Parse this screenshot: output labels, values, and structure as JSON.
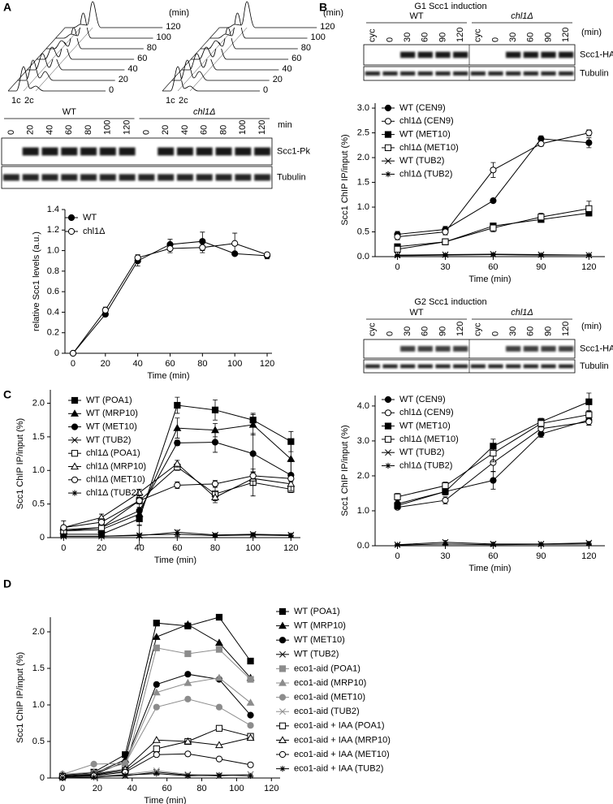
{
  "panels": [
    "A",
    "B",
    "C",
    "D"
  ],
  "flow": {
    "unit": "(min)",
    "times": [
      "120",
      "100",
      "80",
      "60",
      "40",
      "20",
      "0"
    ],
    "peaks": [
      "1c",
      "2c"
    ]
  },
  "blots": [
    {
      "groups": [
        "WT",
        "chl1Δ"
      ],
      "lanes": [
        "0",
        "20",
        "40",
        "60",
        "80",
        "100",
        "120"
      ],
      "unit": "min",
      "rows": [
        "Scc1-Pk",
        "Tubulin"
      ]
    },
    {
      "title": "G1 Scc1 induction",
      "groups": [
        "WT",
        "chl1Δ"
      ],
      "lanes": [
        "cyc",
        "0",
        "30",
        "60",
        "90",
        "120"
      ],
      "unit": "(min)",
      "rows": [
        "Scc1-HA",
        "Tubulin"
      ]
    },
    {
      "title": "G2 Scc1 induction",
      "groups": [
        "WT",
        "chl1Δ"
      ],
      "lanes": [
        "cyc",
        "0",
        "30",
        "60",
        "90",
        "120"
      ],
      "unit": "(min)",
      "rows": [
        "Scc1-HA",
        "Tubulin"
      ]
    }
  ],
  "chart_data": [
    {
      "type": "line",
      "xlabel": "Time (min)",
      "ylabel": "relative Scc1 levels (a.u.)",
      "x": [
        0,
        20,
        40,
        60,
        80,
        100,
        120
      ],
      "xlim": [
        -5,
        123
      ],
      "xticks": [
        0,
        20,
        40,
        60,
        80,
        100,
        120
      ],
      "ylim": [
        0,
        1.4
      ],
      "yticks": [
        0,
        0.2,
        0.4,
        0.6,
        0.8,
        {
          "value": 1,
          "label": "1.0"
        },
        1.2,
        1.4
      ],
      "legend": "upper left",
      "series": [
        {
          "name": "WT",
          "color": "#000000",
          "marker": "circle",
          "fill": "#000000",
          "values": [
            0,
            0.38,
            0.9,
            1.06,
            1.09,
            0.97,
            0.95
          ],
          "errors": [
            0.01,
            0.02,
            0.05,
            0.05,
            0.09,
            0.01,
            0.03
          ]
        },
        {
          "name": "chl1Δ",
          "color": "#000000",
          "marker": "circle",
          "fill": "#ffffff",
          "values": [
            0,
            0.42,
            0.93,
            1.02,
            1.03,
            1.07,
            0.96
          ],
          "errors": [
            0.01,
            0.03,
            0.03,
            0.04,
            0.05,
            0.1,
            0.02
          ]
        }
      ]
    },
    {
      "type": "line",
      "xlabel": "Time (min)",
      "ylabel": "Scc1 ChIP IP/input (%)",
      "x": [
        0,
        30,
        60,
        90,
        120
      ],
      "xlim": [
        -14,
        130
      ],
      "xticks": [
        0,
        30,
        60,
        90,
        120
      ],
      "ylim": [
        0,
        3.1
      ],
      "yticks": [
        {
          "value": 0,
          "label": "0.0"
        },
        0.5,
        {
          "value": 1,
          "label": "1.0"
        },
        1.5,
        {
          "value": 2,
          "label": "2.0"
        },
        2.5,
        {
          "value": 3,
          "label": "3.0"
        }
      ],
      "legend": "upper left",
      "series": [
        {
          "name": "WT (CEN9)",
          "color": "#000000",
          "marker": "circle",
          "fill": "#000000",
          "values": [
            0.45,
            0.55,
            1.13,
            2.38,
            2.3
          ],
          "errors": [
            0.06,
            0.06,
            0.04,
            0.06,
            0.1
          ]
        },
        {
          "name": "chl1Δ (CEN9)",
          "color": "#000000",
          "marker": "circle",
          "fill": "#ffffff",
          "values": [
            0.4,
            0.5,
            1.75,
            2.28,
            2.5
          ],
          "errors": [
            0.06,
            0.06,
            0.15,
            0.05,
            0.06
          ]
        },
        {
          "name": "WT (MET10)",
          "color": "#000000",
          "marker": "square",
          "fill": "#000000",
          "values": [
            0.2,
            0.3,
            0.62,
            0.75,
            0.88
          ],
          "errors": [
            0.05,
            0.05,
            0.04,
            0.04,
            0.05
          ]
        },
        {
          "name": "chl1Δ (MET10)",
          "color": "#000000",
          "marker": "square",
          "fill": "#ffffff",
          "values": [
            0.15,
            0.3,
            0.58,
            0.8,
            0.97
          ],
          "errors": [
            0.05,
            0.06,
            0.08,
            0.08,
            0.15
          ]
        },
        {
          "name": "WT (TUB2)",
          "color": "#000000",
          "marker": "x",
          "fill": "#000000",
          "values": [
            0.03,
            0.04,
            0.05,
            0.04,
            0.03
          ],
          "errors": [
            0.01,
            0.01,
            0.01,
            0.01,
            0.01
          ]
        },
        {
          "name": "chl1Δ (TUB2)",
          "color": "#000000",
          "marker": "star",
          "fill": "#000000",
          "values": [
            0.02,
            0.03,
            0.04,
            0.03,
            0.03
          ],
          "errors": [
            0.01,
            0.01,
            0.01,
            0.01,
            0.01
          ]
        }
      ]
    },
    {
      "type": "line",
      "xlabel": "Time (min)",
      "ylabel": "Scc1 ChIP IP/input (%)",
      "x": [
        0,
        30,
        60,
        90,
        120
      ],
      "xlim": [
        -14,
        130
      ],
      "xticks": [
        0,
        30,
        60,
        90,
        120
      ],
      "ylim": [
        0,
        4.3
      ],
      "yticks": [
        {
          "value": 0,
          "label": "0.0"
        },
        {
          "value": 1,
          "label": "1.0"
        },
        {
          "value": 2,
          "label": "2.0"
        },
        {
          "value": 3,
          "label": "3.0"
        },
        {
          "value": 4,
          "label": "4.0"
        }
      ],
      "legend": "upper left",
      "series": [
        {
          "name": "WT (CEN9)",
          "color": "#000000",
          "marker": "circle",
          "fill": "#000000",
          "values": [
            1.2,
            1.55,
            1.87,
            3.2,
            3.6
          ],
          "errors": [
            0.1,
            0.1,
            0.25,
            0.1,
            0.15
          ]
        },
        {
          "name": "chl1Δ (CEN9)",
          "color": "#000000",
          "marker": "circle",
          "fill": "#ffffff",
          "values": [
            1.1,
            1.3,
            2.38,
            3.35,
            3.55
          ],
          "errors": [
            0.05,
            0.1,
            0.25,
            0.1,
            0.1
          ]
        },
        {
          "name": "WT (MET10)",
          "color": "#000000",
          "marker": "square",
          "fill": "#000000",
          "values": [
            1.15,
            1.55,
            2.85,
            3.55,
            4.12
          ],
          "errors": [
            0.1,
            0.1,
            0.2,
            0.1,
            0.25
          ]
        },
        {
          "name": "chl1Δ (MET10)",
          "color": "#000000",
          "marker": "square",
          "fill": "#ffffff",
          "values": [
            1.4,
            1.72,
            2.65,
            3.5,
            3.75
          ],
          "errors": [
            0.1,
            0.1,
            0.25,
            0.1,
            0.1
          ]
        },
        {
          "name": "WT (TUB2)",
          "color": "#000000",
          "marker": "x",
          "fill": "#000000",
          "values": [
            0.03,
            0.1,
            0.05,
            0.05,
            0.08
          ],
          "errors": [
            0.03,
            0.05,
            0.05,
            0.04,
            0.04
          ]
        },
        {
          "name": "chl1Δ (TUB2)",
          "color": "#000000",
          "marker": "star",
          "fill": "#000000",
          "values": [
            0.02,
            0.05,
            0.03,
            0.04,
            0.05
          ],
          "errors": [
            0.02,
            0.02,
            0.02,
            0.02,
            0.02
          ]
        }
      ]
    },
    {
      "type": "line",
      "xlabel": "Time (min)",
      "ylabel": "Scc1 ChIP IP/input (%)",
      "x": [
        0,
        20,
        40,
        60,
        80,
        100,
        120
      ],
      "xlim": [
        -7,
        125
      ],
      "xticks": [
        0,
        20,
        40,
        60,
        80,
        100,
        120
      ],
      "ylim": [
        0,
        2.2
      ],
      "yticks": [
        0,
        0.5,
        {
          "value": 1,
          "label": "1.0"
        },
        1.5,
        {
          "value": 2,
          "label": "2.0"
        }
      ],
      "legend": "upper left",
      "series": [
        {
          "name": "WT (POA1)",
          "color": "#000000",
          "marker": "square",
          "fill": "#000000",
          "values": [
            0.05,
            0.05,
            0.28,
            1.97,
            1.9,
            1.75,
            1.43
          ],
          "errors": [
            0.02,
            0.03,
            0.1,
            0.12,
            0.15,
            0.1,
            0.15
          ]
        },
        {
          "name": "WT (MRP10)",
          "color": "#000000",
          "marker": "triangle",
          "fill": "#000000",
          "values": [
            0.1,
            0.12,
            0.35,
            1.63,
            1.6,
            1.68,
            1.17
          ],
          "errors": [
            0.03,
            0.05,
            0.08,
            0.15,
            0.1,
            0.15,
            0.25
          ]
        },
        {
          "name": "WT (MET10)",
          "color": "#000000",
          "marker": "circle",
          "fill": "#000000",
          "values": [
            0.12,
            0.15,
            0.4,
            1.41,
            1.42,
            1.25,
            0.93
          ],
          "errors": [
            0.03,
            0.05,
            0.05,
            0.04,
            0.15,
            0.3,
            0.2
          ]
        },
        {
          "name": "WT (TUB2)",
          "color": "#000000",
          "marker": "x",
          "fill": "#000000",
          "values": [
            0.02,
            0.02,
            0.03,
            0.08,
            0.04,
            0.05,
            0.04
          ],
          "errors": [
            0.01,
            0.01,
            0.02,
            0.03,
            0.02,
            0.02,
            0.02
          ]
        },
        {
          "name": "chl1Δ (POA1)",
          "color": "#000000",
          "marker": "square",
          "fill": "#ffffff",
          "values": [
            0.1,
            0.15,
            0.55,
            1.05,
            0.65,
            0.82,
            0.72
          ],
          "errors": [
            0.03,
            0.05,
            0.1,
            0.05,
            0.1,
            0.2,
            0.05
          ]
        },
        {
          "name": "chl1Δ (MRP10)",
          "color": "#000000",
          "marker": "triangle",
          "fill": "#ffffff",
          "values": [
            0.15,
            0.3,
            0.67,
            1.1,
            0.6,
            0.88,
            0.8
          ],
          "errors": [
            0.03,
            0.05,
            0.05,
            0.05,
            0.08,
            0.1,
            0.1
          ]
        },
        {
          "name": "chl1Δ (MET10)",
          "color": "#000000",
          "marker": "circle",
          "fill": "#ffffff",
          "values": [
            0.15,
            0.23,
            0.55,
            0.78,
            0.8,
            0.92,
            0.88
          ],
          "errors": [
            0.1,
            0.05,
            0.05,
            0.05,
            0.05,
            0.05,
            0.05
          ]
        },
        {
          "name": "chl1Δ (TUB2)",
          "color": "#000000",
          "marker": "star",
          "fill": "#000000",
          "values": [
            0.02,
            0.02,
            0.04,
            0.05,
            0.03,
            0.04,
            0.03
          ],
          "errors": [
            0.01,
            0.01,
            0.15,
            0.03,
            0.02,
            0.02,
            0.02
          ]
        }
      ]
    },
    {
      "type": "line",
      "xlabel": "Time (min)",
      "ylabel": "Scc1 ChIP IP/input (%)",
      "x": [
        0,
        18,
        36,
        54,
        72,
        90,
        108
      ],
      "xlim": [
        -7,
        125
      ],
      "xticks": [
        0,
        20,
        40,
        60,
        80,
        100,
        120
      ],
      "ylim": [
        0,
        2.2
      ],
      "yticks": [
        0,
        0.5,
        {
          "value": 1,
          "label": "1.0"
        },
        1.5,
        {
          "value": 2,
          "label": "2.0"
        }
      ],
      "legend": "right",
      "series": [
        {
          "name": "WT (POA1)",
          "color": "#000000",
          "marker": "square",
          "fill": "#000000",
          "values": [
            0.02,
            0.08,
            0.32,
            2.12,
            2.08,
            2.2,
            1.6
          ]
        },
        {
          "name": "WT (MRP10)",
          "color": "#000000",
          "marker": "triangle",
          "fill": "#000000",
          "values": [
            0.05,
            0.06,
            0.25,
            1.93,
            2.1,
            1.85,
            1.37
          ]
        },
        {
          "name": "WT (MET10)",
          "color": "#000000",
          "marker": "circle",
          "fill": "#000000",
          "values": [
            0.04,
            0.05,
            0.22,
            1.28,
            1.42,
            1.35,
            0.86
          ]
        },
        {
          "name": "WT (TUB2)",
          "color": "#000000",
          "marker": "x",
          "fill": "#000000",
          "values": [
            0,
            0.02,
            0.03,
            0.08,
            0.04,
            0.03,
            0.05
          ]
        },
        {
          "name": "eco1-aid (POA1)",
          "color": "#8c8c8c",
          "marker": "square",
          "fill": "#8c8c8c",
          "values": [
            0.03,
            0.06,
            0.12,
            1.78,
            1.7,
            1.76,
            1.35
          ]
        },
        {
          "name": "eco1-aid (MRP10)",
          "color": "#8c8c8c",
          "marker": "triangle",
          "fill": "#8c8c8c",
          "values": [
            0.05,
            0.08,
            0.2,
            1.17,
            1.3,
            1.37,
            1.03
          ]
        },
        {
          "name": "eco1-aid (MET10)",
          "color": "#8c8c8c",
          "marker": "circle",
          "fill": "#8c8c8c",
          "values": [
            0.05,
            0.19,
            0.2,
            0.97,
            1.08,
            0.97,
            0.72
          ]
        },
        {
          "name": "eco1-aid (TUB2)",
          "color": "#8c8c8c",
          "marker": "x",
          "fill": "#8c8c8c",
          "values": [
            0,
            0.02,
            0.05,
            0.1,
            0.05,
            0.04,
            0.05
          ]
        },
        {
          "name": "eco1-aid + IAA (POA1)",
          "color": "#000000",
          "marker": "square",
          "fill": "#ffffff",
          "values": [
            0.02,
            0.04,
            0.1,
            0.4,
            0.5,
            0.68,
            0.57
          ]
        },
        {
          "name": "eco1-aid + IAA (MRP10)",
          "color": "#000000",
          "marker": "triangle",
          "fill": "#ffffff",
          "values": [
            0.03,
            0.05,
            0.12,
            0.52,
            0.5,
            0.45,
            0.55
          ]
        },
        {
          "name": "eco1-aid + IAA (MET10)",
          "color": "#000000",
          "marker": "circle",
          "fill": "#ffffff",
          "values": [
            0.01,
            0.03,
            0.08,
            0.32,
            0.33,
            0.26,
            0.18
          ]
        },
        {
          "name": "eco1-aid + IAA (TUB2)",
          "color": "#000000",
          "marker": "star",
          "fill": "#000000",
          "values": [
            0,
            0.01,
            0.04,
            0.06,
            0.03,
            0.04,
            0.03
          ]
        }
      ]
    }
  ]
}
